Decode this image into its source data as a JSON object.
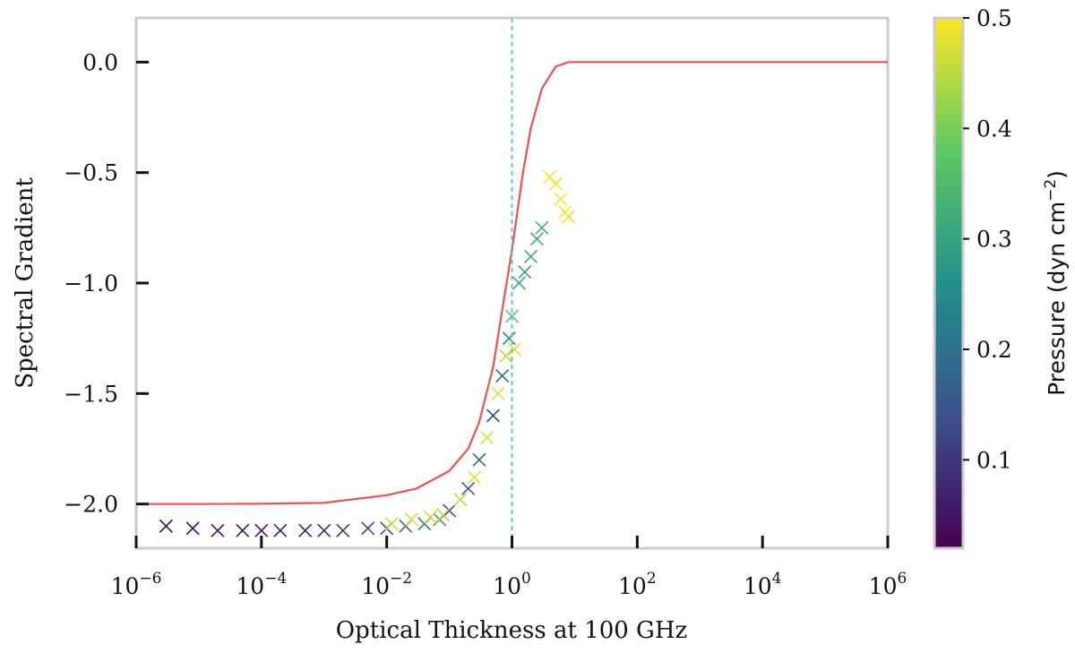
{
  "chart_data": {
    "type": "scatter",
    "title": "",
    "xlabel": "Optical Thickness at 100 GHz",
    "ylabel": "Spectral Gradient",
    "xscale": "log",
    "xlim": [
      1e-06,
      1000000.0
    ],
    "ylim": [
      -2.2,
      0.2
    ],
    "xticks": [
      {
        "value": 1e-06,
        "base": "10",
        "exp": "−6"
      },
      {
        "value": 0.0001,
        "base": "10",
        "exp": "−4"
      },
      {
        "value": 0.01,
        "base": "10",
        "exp": "−2"
      },
      {
        "value": 1,
        "base": "10",
        "exp": "0"
      },
      {
        "value": 100.0,
        "base": "10",
        "exp": "2"
      },
      {
        "value": 10000.0,
        "base": "10",
        "exp": "4"
      },
      {
        "value": 1000000.0,
        "base": "10",
        "exp": "6"
      }
    ],
    "yticks": [
      {
        "value": 0.0,
        "label": "0.0"
      },
      {
        "value": -0.5,
        "label": "−0.5"
      },
      {
        "value": -1.0,
        "label": "−1.0"
      },
      {
        "value": -1.5,
        "label": "−1.5"
      },
      {
        "value": -2.0,
        "label": "−2.0"
      }
    ],
    "reference_line": {
      "x": 1,
      "color": "#4fc3d6",
      "style": "dashed"
    },
    "model_curve": {
      "color": "#f0504f",
      "points": [
        [
          1e-06,
          -2.0
        ],
        [
          1e-05,
          -2.0
        ],
        [
          0.0001,
          -1.999
        ],
        [
          0.001,
          -1.995
        ],
        [
          0.01,
          -1.96
        ],
        [
          0.03,
          -1.93
        ],
        [
          0.1,
          -1.85
        ],
        [
          0.2,
          -1.75
        ],
        [
          0.3,
          -1.63
        ],
        [
          0.5,
          -1.38
        ],
        [
          0.7,
          -1.12
        ],
        [
          1.0,
          -0.85
        ],
        [
          1.5,
          -0.5
        ],
        [
          2.0,
          -0.3
        ],
        [
          3.0,
          -0.12
        ],
        [
          5.0,
          -0.02
        ],
        [
          8.0,
          0.0
        ],
        [
          100.0,
          0.0
        ],
        [
          10000.0,
          0.0
        ],
        [
          1000000.0,
          0.0
        ]
      ]
    },
    "scatter_series": [
      {
        "marker": "x",
        "points": [
          [
            3e-06,
            -2.1,
            0.03
          ],
          [
            8e-06,
            -2.11,
            0.03
          ],
          [
            2e-05,
            -2.12,
            0.04
          ],
          [
            5e-05,
            -2.12,
            0.04
          ],
          [
            0.0001,
            -2.12,
            0.05
          ],
          [
            0.0002,
            -2.12,
            0.06
          ],
          [
            0.0005,
            -2.12,
            0.07
          ],
          [
            0.001,
            -2.12,
            0.08
          ],
          [
            0.002,
            -2.12,
            0.1
          ],
          [
            0.005,
            -2.11,
            0.12
          ],
          [
            0.01,
            -2.11,
            0.15
          ],
          [
            0.02,
            -2.1,
            0.18
          ],
          [
            0.04,
            -2.09,
            0.22
          ],
          [
            0.07,
            -2.07,
            0.28
          ],
          [
            0.1,
            -2.03,
            0.12
          ],
          [
            0.15,
            -1.98,
            0.45
          ],
          [
            0.2,
            -1.93,
            0.15
          ],
          [
            0.25,
            -1.88,
            0.48
          ],
          [
            0.3,
            -1.8,
            0.18
          ],
          [
            0.4,
            -1.7,
            0.47
          ],
          [
            0.5,
            -1.6,
            0.14
          ],
          [
            0.6,
            -1.5,
            0.48
          ],
          [
            0.7,
            -1.42,
            0.2
          ],
          [
            0.8,
            -1.33,
            0.45
          ],
          [
            0.9,
            -1.25,
            0.25
          ],
          [
            1.0,
            -1.15,
            0.38
          ],
          [
            1.1,
            -1.3,
            0.48
          ],
          [
            1.3,
            -1.0,
            0.32
          ],
          [
            1.6,
            -0.95,
            0.3
          ],
          [
            2.0,
            -0.88,
            0.32
          ],
          [
            2.5,
            -0.8,
            0.32
          ],
          [
            3.0,
            -0.75,
            0.33
          ],
          [
            4.0,
            -0.52,
            0.5
          ],
          [
            5.0,
            -0.55,
            0.49
          ],
          [
            6.0,
            -0.62,
            0.5
          ],
          [
            7.0,
            -0.68,
            0.5
          ],
          [
            8.0,
            -0.7,
            0.49
          ],
          [
            0.012,
            -2.09,
            0.46
          ],
          [
            0.025,
            -2.07,
            0.47
          ],
          [
            0.05,
            -2.06,
            0.46
          ],
          [
            0.08,
            -2.05,
            0.45
          ]
        ]
      }
    ],
    "colorbar": {
      "label_main": "Pressure (dyn cm",
      "label_exp": "−2",
      "label_close": ")",
      "range": [
        0.02,
        0.5
      ],
      "ticks": [
        {
          "value": 0.1,
          "label": "0.1"
        },
        {
          "value": 0.2,
          "label": "0.2"
        },
        {
          "value": 0.3,
          "label": "0.3"
        },
        {
          "value": 0.4,
          "label": "0.4"
        },
        {
          "value": 0.5,
          "label": "0.5"
        }
      ],
      "colormap": "viridis",
      "stops": [
        "#440154",
        "#3b528b",
        "#21908c",
        "#5dc963",
        "#fde725"
      ]
    },
    "grid": false,
    "frame_color": "#cccccc"
  }
}
